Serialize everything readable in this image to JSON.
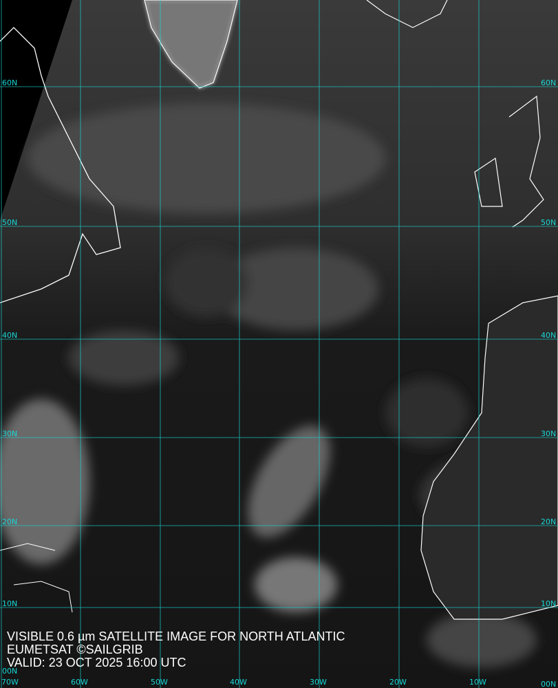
{
  "caption": {
    "line1": "VISIBLE 0.6 µm SATELLITE IMAGE FOR NORTH ATLANTIC",
    "line2": "EUMETSAT ©SAILGRIB",
    "line3": "VALID:  23 OCT 2025 16:00 UTC"
  },
  "grid": {
    "color": "#19d6d6",
    "latitudes": [
      "60N",
      "50N",
      "40N",
      "30N",
      "20N",
      "10N",
      "00N"
    ],
    "longitudes": [
      "70W",
      "60W",
      "50W",
      "40W",
      "30W",
      "20W",
      "10W"
    ]
  },
  "coastline_color": "#ffffff"
}
